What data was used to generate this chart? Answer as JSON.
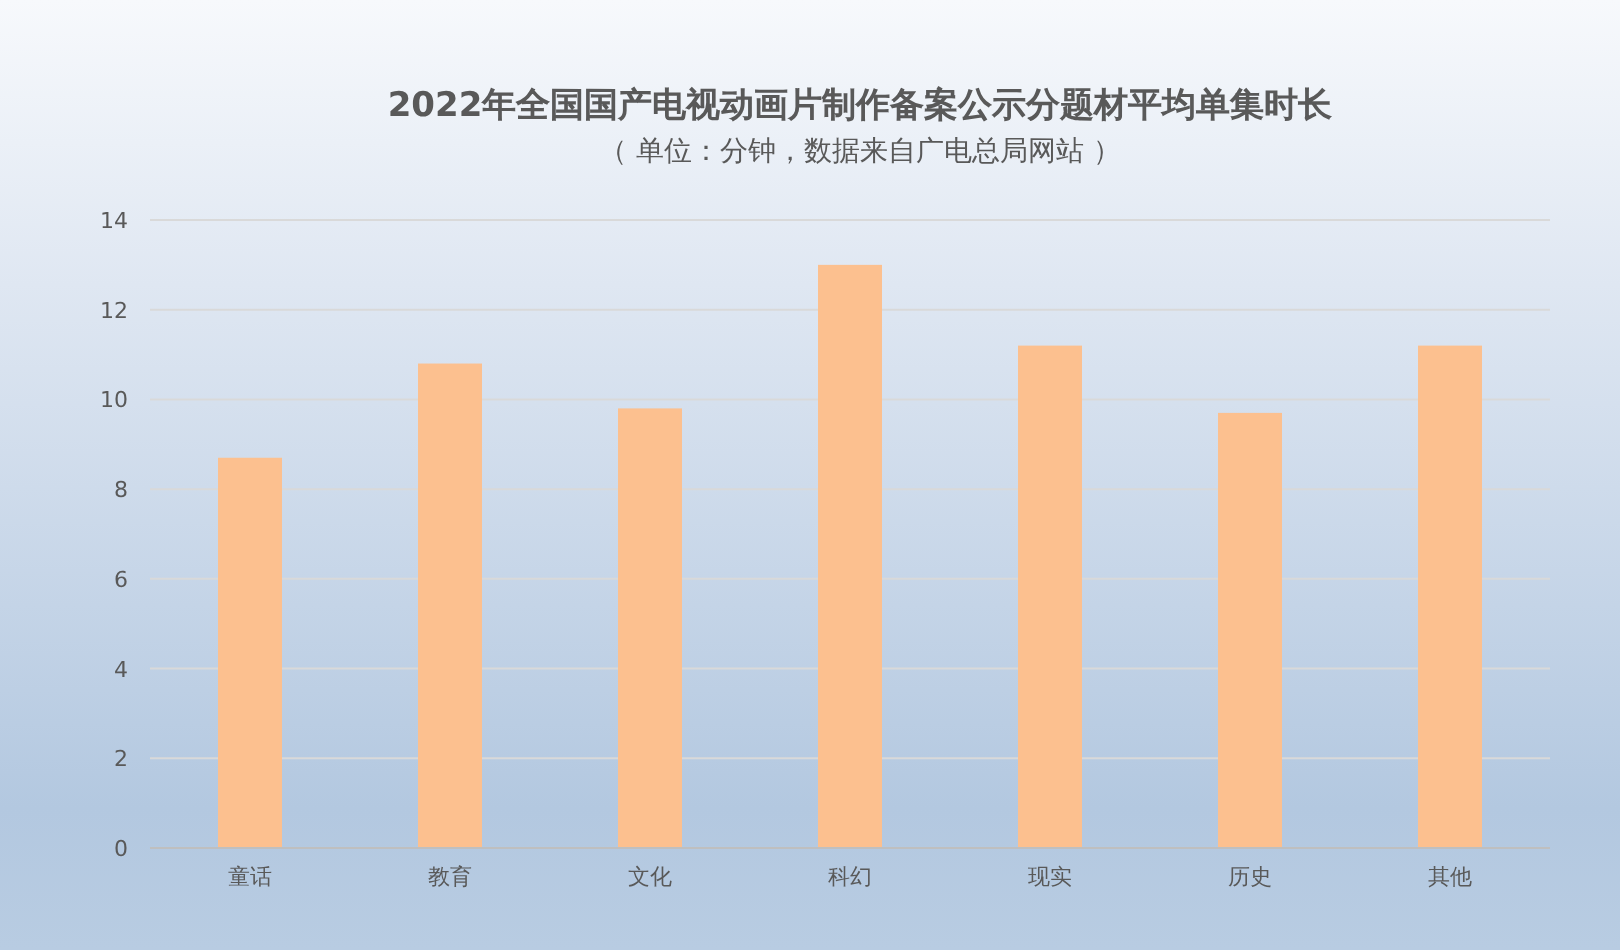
{
  "chart_data": {
    "type": "bar",
    "title": "2022年全国国产电视动画片制作备案公示分题材平均单集时长",
    "subtitle": "（ 单位：分钟，数据来自广电总局网站 ）",
    "categories": [
      "童话",
      "教育",
      "文化",
      "科幻",
      "现实",
      "历史",
      "其他"
    ],
    "values": [
      8.7,
      10.8,
      9.8,
      13.0,
      11.2,
      9.7,
      11.2
    ],
    "color": "#fcc08f",
    "ylim": [
      0,
      14
    ],
    "yticks": [
      0,
      2,
      4,
      6,
      8,
      10,
      12,
      14
    ],
    "grid": "y"
  }
}
